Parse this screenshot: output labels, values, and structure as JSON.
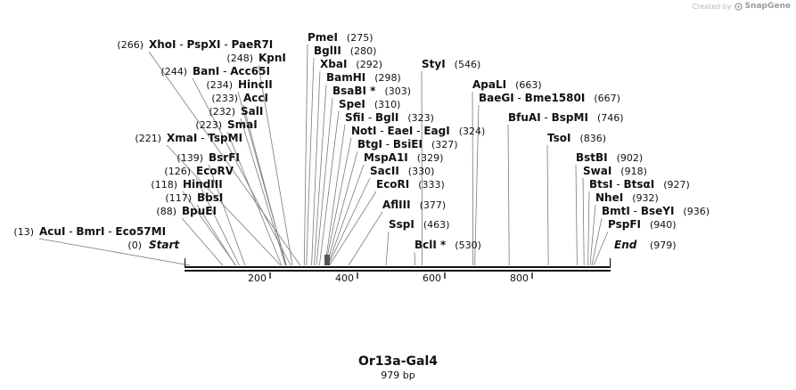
{
  "credit": {
    "prefix": "Created by",
    "brand": "SnapGene"
  },
  "plasmid": {
    "name": "Or13a-Gal4",
    "length_label": "979 bp",
    "length": 979
  },
  "axis": {
    "start": {
      "label": "Start",
      "pos": "(0)"
    },
    "end": {
      "label": "End",
      "pos": "(979)"
    },
    "ticks": [
      {
        "label": "200",
        "value": 200
      },
      {
        "label": "400",
        "value": 400
      },
      {
        "label": "600",
        "value": 600
      },
      {
        "label": "800",
        "value": 800
      }
    ]
  },
  "sites": [
    {
      "id": "acui",
      "pos_label": "(13)",
      "pos": 13,
      "enzymes": [
        "AcuI",
        "BmrI",
        "Eco57MI"
      ],
      "star": false
    },
    {
      "id": "bpuei",
      "pos_label": "(88)",
      "pos": 88,
      "enzymes": [
        "BpuEI"
      ],
      "star": false
    },
    {
      "id": "bbsi",
      "pos_label": "(117)",
      "pos": 117,
      "enzymes": [
        "BbsI"
      ],
      "star": false
    },
    {
      "id": "hindiii",
      "pos_label": "(118)",
      "pos": 118,
      "enzymes": [
        "HindIII"
      ],
      "star": false
    },
    {
      "id": "ecorv",
      "pos_label": "(126)",
      "pos": 126,
      "enzymes": [
        "EcoRV"
      ],
      "star": false
    },
    {
      "id": "bsrfi",
      "pos_label": "(139)",
      "pos": 139,
      "enzymes": [
        "BsrFI"
      ],
      "star": false
    },
    {
      "id": "xmai",
      "pos_label": "(221)",
      "pos": 221,
      "enzymes": [
        "XmaI",
        "TspMI"
      ],
      "star": false
    },
    {
      "id": "smai",
      "pos_label": "(223)",
      "pos": 223,
      "enzymes": [
        "SmaI"
      ],
      "star": false
    },
    {
      "id": "sali",
      "pos_label": "(232)",
      "pos": 232,
      "enzymes": [
        "SalI"
      ],
      "star": false
    },
    {
      "id": "acci",
      "pos_label": "(233)",
      "pos": 233,
      "enzymes": [
        "AccI"
      ],
      "star": false
    },
    {
      "id": "hincii",
      "pos_label": "(234)",
      "pos": 234,
      "enzymes": [
        "HincII"
      ],
      "star": false
    },
    {
      "id": "bani",
      "pos_label": "(244)",
      "pos": 244,
      "enzymes": [
        "BanI",
        "Acc65I"
      ],
      "star": false
    },
    {
      "id": "kpni",
      "pos_label": "(248)",
      "pos": 248,
      "enzymes": [
        "KpnI"
      ],
      "star": false
    },
    {
      "id": "xhoi",
      "pos_label": "(266)",
      "pos": 266,
      "enzymes": [
        "XhoI",
        "PspXI",
        "PaeR7I"
      ],
      "star": false
    },
    {
      "id": "pmei",
      "pos_label": "(275)",
      "pos": 275,
      "enzymes": [
        "PmeI"
      ],
      "star": false
    },
    {
      "id": "bglii",
      "pos_label": "(280)",
      "pos": 280,
      "enzymes": [
        "BglII"
      ],
      "star": false
    },
    {
      "id": "xbai",
      "pos_label": "(292)",
      "pos": 292,
      "enzymes": [
        "XbaI"
      ],
      "star": false
    },
    {
      "id": "bamhi",
      "pos_label": "(298)",
      "pos": 298,
      "enzymes": [
        "BamHI"
      ],
      "star": false
    },
    {
      "id": "bsabi",
      "pos_label": "(303)",
      "pos": 303,
      "enzymes": [
        "BsaBI"
      ],
      "star": true
    },
    {
      "id": "spei",
      "pos_label": "(310)",
      "pos": 310,
      "enzymes": [
        "SpeI"
      ],
      "star": false
    },
    {
      "id": "sfii",
      "pos_label": "(323)",
      "pos": 323,
      "enzymes": [
        "SfiI",
        "BglI"
      ],
      "star": false
    },
    {
      "id": "noti",
      "pos_label": "(324)",
      "pos": 324,
      "enzymes": [
        "NotI",
        "EaeI",
        "EagI"
      ],
      "star": false
    },
    {
      "id": "btgi",
      "pos_label": "(327)",
      "pos": 327,
      "enzymes": [
        "BtgI",
        "BsiEI"
      ],
      "star": false
    },
    {
      "id": "mspa1i",
      "pos_label": "(329)",
      "pos": 329,
      "enzymes": [
        "MspA1I"
      ],
      "star": false
    },
    {
      "id": "sacii",
      "pos_label": "(330)",
      "pos": 330,
      "enzymes": [
        "SacII"
      ],
      "star": false
    },
    {
      "id": "ecori",
      "pos_label": "(333)",
      "pos": 333,
      "enzymes": [
        "EcoRI"
      ],
      "star": false
    },
    {
      "id": "aflii",
      "pos_label": "(377)",
      "pos": 377,
      "enzymes": [
        "AflIII"
      ],
      "star": false
    },
    {
      "id": "sspi",
      "pos_label": "(463)",
      "pos": 463,
      "enzymes": [
        "SspI"
      ],
      "star": false
    },
    {
      "id": "bcli",
      "pos_label": "(530)",
      "pos": 530,
      "enzymes": [
        "BclI"
      ],
      "star": true
    },
    {
      "id": "styi",
      "pos_label": "(546)",
      "pos": 546,
      "enzymes": [
        "StyI"
      ],
      "star": false
    },
    {
      "id": "apali",
      "pos_label": "(663)",
      "pos": 663,
      "enzymes": [
        "ApaLI"
      ],
      "star": false
    },
    {
      "id": "baegi",
      "pos_label": "(667)",
      "pos": 667,
      "enzymes": [
        "BaeGI",
        "Bme1580I"
      ],
      "star": false
    },
    {
      "id": "bfuai",
      "pos_label": "(746)",
      "pos": 746,
      "enzymes": [
        "BfuAI",
        "BspMI"
      ],
      "star": false
    },
    {
      "id": "tsoi",
      "pos_label": "(836)",
      "pos": 836,
      "enzymes": [
        "TsoI"
      ],
      "star": false
    },
    {
      "id": "bstbi",
      "pos_label": "(902)",
      "pos": 902,
      "enzymes": [
        "BstBI"
      ],
      "star": false
    },
    {
      "id": "swai",
      "pos_label": "(918)",
      "pos": 918,
      "enzymes": [
        "SwaI"
      ],
      "star": false
    },
    {
      "id": "btsi",
      "pos_label": "(927)",
      "pos": 927,
      "enzymes": [
        "BtsI",
        "BtsαI"
      ],
      "star": false
    },
    {
      "id": "nhei",
      "pos_label": "(932)",
      "pos": 932,
      "enzymes": [
        "NheI"
      ],
      "star": false
    },
    {
      "id": "bmti",
      "pos_label": "(936)",
      "pos": 936,
      "enzymes": [
        "BmtI",
        "BseYI"
      ],
      "star": false
    },
    {
      "id": "pspfi",
      "pos_label": "(940)",
      "pos": 940,
      "enzymes": [
        "PspFI"
      ],
      "star": false
    }
  ]
}
